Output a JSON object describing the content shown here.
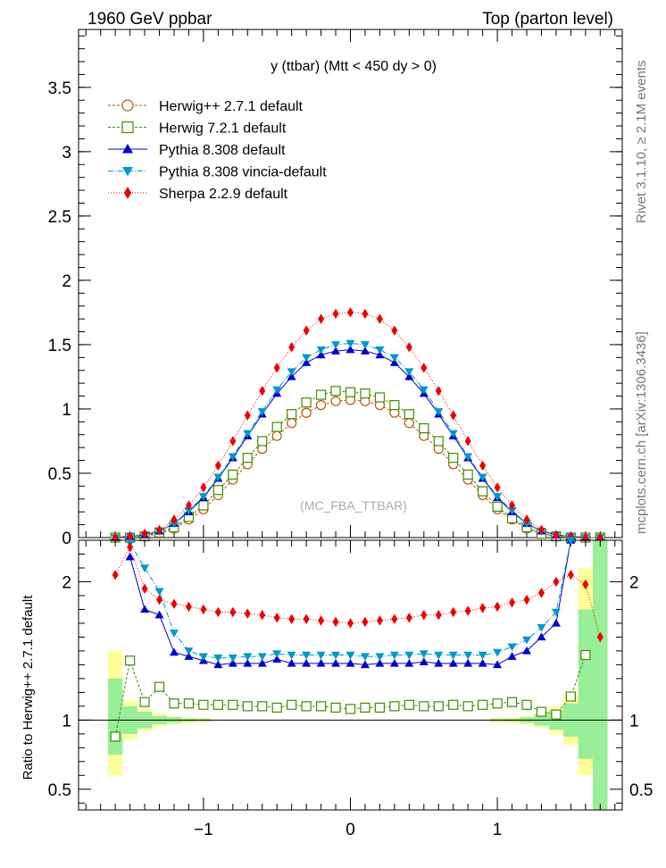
{
  "header": {
    "left": "1960 GeV ppbar",
    "right": "Top (parton level)"
  },
  "side": {
    "rivet": "Rivet 3.1.10, ≥ 2.1M events",
    "mcplots": "mcplots.cern.ch [arXiv:1306.3436]"
  },
  "chart_data": {
    "type": "scatter",
    "title": "y (ttbar) (Mtt < 450 dy > 0)",
    "watermark": "(MC_FBA_TTBAR)",
    "xlim": [
      -1.85,
      1.85
    ],
    "main": {
      "ylim": [
        0,
        3.95
      ],
      "yticks": [
        {
          "v": 0,
          "label": "0"
        },
        {
          "v": 0.5,
          "label": "0.5"
        },
        {
          "v": 1,
          "label": "1"
        },
        {
          "v": 1.5,
          "label": "1.5"
        },
        {
          "v": 2,
          "label": "2"
        },
        {
          "v": 2.5,
          "label": "2.5"
        },
        {
          "v": 3,
          "label": "3"
        },
        {
          "v": 3.5,
          "label": "3.5"
        }
      ]
    },
    "ratio": {
      "ylabel": "Ratio to Herwig++ 2.7.1 default",
      "ylim": [
        0.35,
        2.3
      ],
      "yticks": [
        {
          "v": 0.5,
          "label": "0.5"
        },
        {
          "v": 1,
          "label": "1"
        },
        {
          "v": 2,
          "label": "2"
        }
      ],
      "band_outer": [
        [
          -1.65,
          -1.55,
          0.6,
          1.5
        ],
        [
          -1.55,
          -1.45,
          0.86,
          1.14
        ],
        [
          -1.45,
          -1.35,
          0.92,
          1.08
        ],
        [
          -1.35,
          -1.25,
          0.95,
          1.05
        ],
        [
          -1.25,
          -1.15,
          0.97,
          1.03
        ],
        [
          -1.15,
          -1.05,
          0.98,
          1.02
        ],
        [
          -1.05,
          -0.95,
          0.985,
          1.015
        ],
        [
          0.95,
          1.05,
          0.985,
          1.015
        ],
        [
          1.05,
          1.15,
          0.98,
          1.02
        ],
        [
          1.15,
          1.25,
          0.97,
          1.03
        ],
        [
          1.25,
          1.35,
          0.95,
          1.05
        ],
        [
          1.35,
          1.45,
          0.9,
          1.1
        ],
        [
          1.45,
          1.55,
          0.82,
          1.18
        ],
        [
          1.55,
          1.65,
          0.6,
          2.1
        ],
        [
          1.65,
          1.75,
          0.35,
          2.3
        ]
      ],
      "band_inner": [
        [
          -1.65,
          -1.55,
          0.75,
          1.3
        ],
        [
          -1.55,
          -1.45,
          0.9,
          1.1
        ],
        [
          -1.45,
          -1.35,
          0.94,
          1.06
        ],
        [
          -1.35,
          -1.25,
          0.97,
          1.03
        ],
        [
          -1.25,
          -1.15,
          0.98,
          1.02
        ],
        [
          -1.15,
          -1.05,
          0.99,
          1.01
        ],
        [
          -1.05,
          -0.95,
          0.992,
          1.008
        ],
        [
          0.95,
          1.05,
          0.992,
          1.008
        ],
        [
          1.05,
          1.15,
          0.99,
          1.01
        ],
        [
          1.15,
          1.25,
          0.98,
          1.02
        ],
        [
          1.25,
          1.35,
          0.96,
          1.04
        ],
        [
          1.35,
          1.45,
          0.93,
          1.07
        ],
        [
          1.45,
          1.55,
          0.88,
          1.12
        ],
        [
          1.55,
          1.65,
          0.72,
          1.8
        ],
        [
          1.65,
          1.75,
          0.35,
          2.3
        ]
      ]
    },
    "x": [
      -1.6,
      -1.5,
      -1.4,
      -1.3,
      -1.2,
      -1.1,
      -1.0,
      -0.9,
      -0.8,
      -0.7,
      -0.6,
      -0.5,
      -0.4,
      -0.3,
      -0.2,
      -0.1,
      0.0,
      0.1,
      0.2,
      0.3,
      0.4,
      0.5,
      0.6,
      0.7,
      0.8,
      0.9,
      1.0,
      1.1,
      1.2,
      1.3,
      1.4,
      1.5,
      1.6,
      1.7
    ],
    "xticks": [
      {
        "v": -1,
        "label": "−1"
      },
      {
        "v": 0,
        "label": "0"
      },
      {
        "v": 1,
        "label": "1"
      }
    ],
    "series": [
      {
        "name": "Herwig++ 2.7.1 default",
        "color": "#b35900",
        "marker": "circle-open",
        "line": "dashed",
        "values": [
          0.0,
          0.0,
          0.01,
          0.03,
          0.07,
          0.14,
          0.22,
          0.33,
          0.45,
          0.57,
          0.69,
          0.79,
          0.89,
          0.97,
          1.03,
          1.06,
          1.07,
          1.06,
          1.03,
          0.97,
          0.89,
          0.79,
          0.69,
          0.57,
          0.45,
          0.33,
          0.22,
          0.14,
          0.07,
          0.03,
          0.01,
          0.0,
          0.0,
          0.0
        ],
        "ratio": [
          null,
          null,
          null,
          null,
          null,
          null,
          null,
          null,
          null,
          null,
          null,
          null,
          null,
          null,
          null,
          null,
          null,
          null,
          null,
          null,
          null,
          null,
          null,
          null,
          null,
          null,
          null,
          null,
          null,
          null,
          null,
          null,
          null,
          null
        ]
      },
      {
        "name": "Herwig 7.2.1 default",
        "color": "#448a00",
        "marker": "square-open",
        "line": "dashed",
        "values": [
          0.0,
          0.0,
          0.01,
          0.04,
          0.08,
          0.16,
          0.25,
          0.37,
          0.49,
          0.62,
          0.75,
          0.86,
          0.96,
          1.05,
          1.11,
          1.14,
          1.13,
          1.12,
          1.09,
          1.03,
          0.96,
          0.85,
          0.75,
          0.62,
          0.49,
          0.36,
          0.24,
          0.15,
          0.08,
          0.03,
          0.01,
          0.0,
          0.0,
          0.0
        ],
        "ratio": [
          0.88,
          1.43,
          1.13,
          1.24,
          1.12,
          1.12,
          1.11,
          1.11,
          1.11,
          1.1,
          1.1,
          1.09,
          1.11,
          1.1,
          1.1,
          1.09,
          1.08,
          1.09,
          1.09,
          1.1,
          1.11,
          1.1,
          1.1,
          1.11,
          1.1,
          1.11,
          1.12,
          1.13,
          1.11,
          1.06,
          1.04,
          1.17,
          1.47,
          null
        ]
      },
      {
        "name": "Pythia 8.308 default",
        "color": "#0000cc",
        "marker": "triangle-up",
        "line": "solid",
        "values": [
          0.0,
          0.01,
          0.02,
          0.05,
          0.11,
          0.2,
          0.31,
          0.46,
          0.62,
          0.79,
          0.96,
          1.12,
          1.25,
          1.36,
          1.42,
          1.45,
          1.46,
          1.45,
          1.42,
          1.36,
          1.25,
          1.12,
          0.96,
          0.79,
          0.62,
          0.46,
          0.31,
          0.2,
          0.11,
          0.05,
          0.02,
          0.01,
          0.0,
          0.0
        ],
        "ratio": [
          null,
          2.18,
          1.8,
          1.76,
          1.49,
          1.46,
          1.43,
          1.4,
          1.41,
          1.41,
          1.41,
          1.44,
          1.41,
          1.41,
          1.41,
          1.41,
          1.41,
          1.4,
          1.41,
          1.41,
          1.41,
          1.42,
          1.41,
          1.41,
          1.41,
          1.41,
          1.4,
          1.46,
          1.5,
          1.6,
          1.7,
          2.3,
          null,
          null
        ]
      },
      {
        "name": "Pythia 8.308 vincia-default",
        "color": "#0099cc",
        "marker": "triangle-down",
        "line": "dashdot",
        "values": [
          0.0,
          0.01,
          0.02,
          0.05,
          0.11,
          0.21,
          0.32,
          0.47,
          0.63,
          0.81,
          0.98,
          1.15,
          1.29,
          1.4,
          1.46,
          1.5,
          1.51,
          1.5,
          1.46,
          1.4,
          1.29,
          1.15,
          0.98,
          0.81,
          0.63,
          0.47,
          0.32,
          0.21,
          0.11,
          0.05,
          0.02,
          0.01,
          0.0,
          0.0
        ],
        "ratio": [
          null,
          2.28,
          2.1,
          1.93,
          1.63,
          1.5,
          1.46,
          1.45,
          1.45,
          1.46,
          1.46,
          1.48,
          1.47,
          1.47,
          1.47,
          1.47,
          1.47,
          1.46,
          1.46,
          1.47,
          1.47,
          1.48,
          1.47,
          1.47,
          1.47,
          1.47,
          1.49,
          1.53,
          1.58,
          1.67,
          1.78,
          2.3,
          null,
          null
        ]
      },
      {
        "name": "Sherpa 2.2.9 default",
        "color": "#ee0000",
        "marker": "diamond",
        "line": "dotted",
        "values": [
          0.0,
          0.01,
          0.03,
          0.06,
          0.14,
          0.25,
          0.39,
          0.56,
          0.75,
          0.95,
          1.14,
          1.32,
          1.48,
          1.61,
          1.7,
          1.74,
          1.75,
          1.74,
          1.7,
          1.61,
          1.48,
          1.32,
          1.14,
          0.95,
          0.75,
          0.56,
          0.39,
          0.25,
          0.14,
          0.06,
          0.02,
          0.01,
          0.0,
          0.0
        ],
        "ratio": [
          2.05,
          2.25,
          1.95,
          1.87,
          1.84,
          1.82,
          1.8,
          1.78,
          1.78,
          1.77,
          1.76,
          1.74,
          1.73,
          1.73,
          1.72,
          1.71,
          1.7,
          1.71,
          1.72,
          1.73,
          1.74,
          1.76,
          1.76,
          1.78,
          1.79,
          1.81,
          1.82,
          1.85,
          1.87,
          1.92,
          2.0,
          2.05,
          1.98,
          1.6
        ]
      }
    ]
  }
}
